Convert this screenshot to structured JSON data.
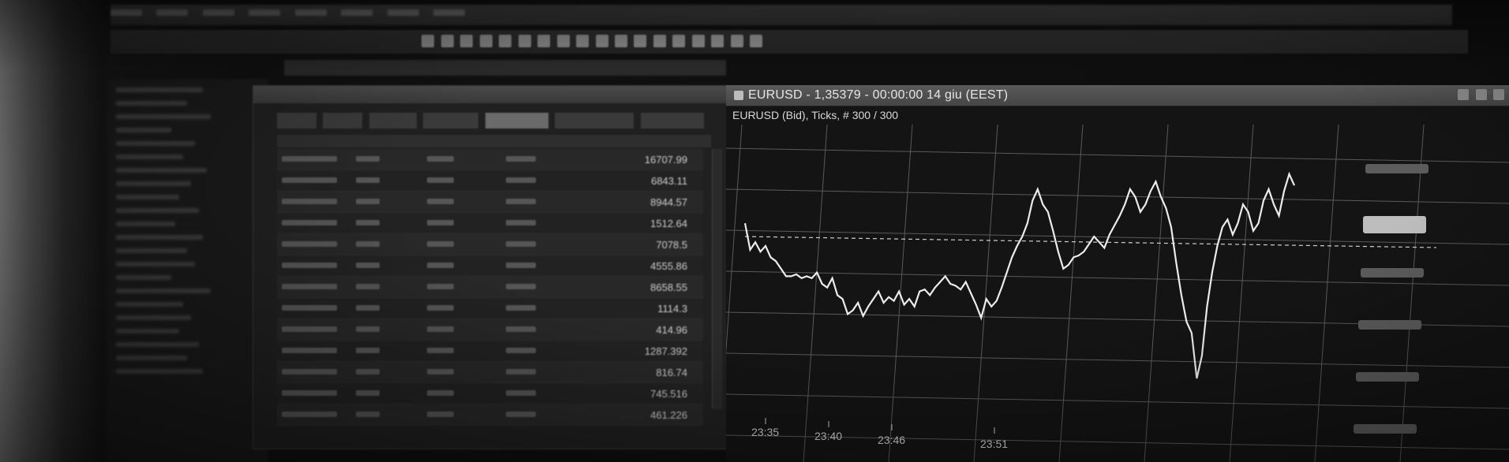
{
  "chart_window": {
    "title": "EURUSD - 1,35379 - 00:00:00  14 giu (EEST)",
    "subtitle": "EURUSD (Bid), Ticks, # 300 / 300"
  },
  "watchlist": {
    "tabs": [
      "",
      "",
      "",
      "",
      "",
      "",
      "",
      ""
    ],
    "values": [
      "16707.99",
      "6843.11",
      "8944.57",
      "1512.64",
      "7078.5",
      "4555.86",
      "8658.55",
      "1114.3",
      "414.96",
      "1287.392",
      "816.74",
      "745.516",
      "461.226"
    ]
  },
  "colors": {
    "line": "#e8e8e8",
    "grid": "#5a5a5a",
    "background": "#141414"
  },
  "chart_data": {
    "type": "line",
    "title": "EURUSD - 1,35379 - 00:00:00  14 giu (EEST)",
    "subtitle": "EURUSD (Bid), Ticks, # 300 / 300",
    "xlabel": "",
    "ylabel": "",
    "x_ticks": [
      "23:35",
      "23:40",
      "23:46",
      "23:51"
    ],
    "grid": true,
    "series": [
      {
        "values": [
          62,
          48,
          52,
          47,
          50,
          44,
          42,
          38,
          34,
          34,
          35,
          33,
          34,
          33,
          36,
          30,
          28,
          33,
          24,
          22,
          14,
          16,
          20,
          13,
          18,
          22,
          26,
          20,
          23,
          21,
          26,
          19,
          22,
          18,
          26,
          27,
          24,
          28,
          31,
          34,
          30,
          29,
          27,
          31,
          25,
          19,
          12,
          22,
          18,
          21,
          28,
          36,
          44,
          50,
          55,
          62,
          74,
          80,
          72,
          68,
          58,
          47,
          38,
          40,
          44,
          45,
          47,
          51,
          55,
          52,
          49,
          56,
          61,
          66,
          72,
          80,
          76,
          68,
          72,
          79,
          84,
          76,
          70,
          60,
          41,
          24,
          10,
          4,
          -20,
          -8,
          18,
          36,
          50,
          60,
          64,
          56,
          62,
          72,
          68,
          58,
          62,
          74,
          80,
          72,
          66,
          79,
          88,
          82
        ]
      }
    ],
    "dashed_reference": 55
  }
}
